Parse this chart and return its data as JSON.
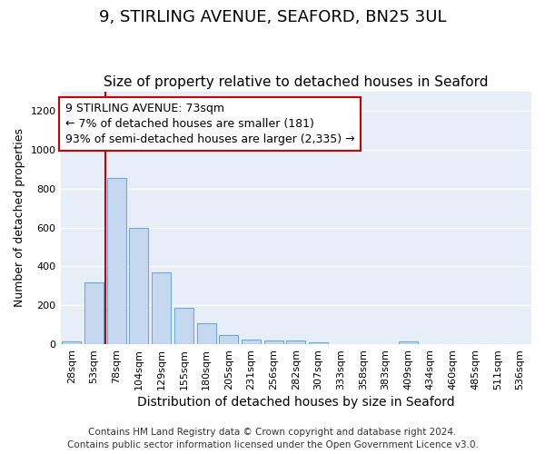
{
  "title": "9, STIRLING AVENUE, SEAFORD, BN25 3UL",
  "subtitle": "Size of property relative to detached houses in Seaford",
  "xlabel": "Distribution of detached houses by size in Seaford",
  "ylabel": "Number of detached properties",
  "bar_labels": [
    "28sqm",
    "53sqm",
    "78sqm",
    "104sqm",
    "129sqm",
    "155sqm",
    "180sqm",
    "205sqm",
    "231sqm",
    "256sqm",
    "282sqm",
    "307sqm",
    "333sqm",
    "358sqm",
    "383sqm",
    "409sqm",
    "434sqm",
    "460sqm",
    "485sqm",
    "511sqm",
    "536sqm"
  ],
  "bar_values": [
    15,
    320,
    855,
    598,
    370,
    185,
    107,
    47,
    22,
    18,
    18,
    10,
    0,
    0,
    0,
    12,
    0,
    0,
    0,
    0,
    0
  ],
  "bar_color": "#c5d8f0",
  "bar_edge_color": "#6aaad4",
  "ylim": [
    0,
    1300
  ],
  "yticks": [
    0,
    200,
    400,
    600,
    800,
    1000,
    1200
  ],
  "marker_label_line1": "9 STIRLING AVENUE: 73sqm",
  "marker_label_line2": "← 7% of detached houses are smaller (181)",
  "marker_label_line3": "93% of semi-detached houses are larger (2,335) →",
  "vline_color": "#cc0000",
  "annotation_box_color": "#cc0000",
  "footer_line1": "Contains HM Land Registry data © Crown copyright and database right 2024.",
  "footer_line2": "Contains public sector information licensed under the Open Government Licence v3.0.",
  "background_color": "#e8eef8",
  "grid_color": "#ffffff",
  "title_fontsize": 13,
  "subtitle_fontsize": 11,
  "xlabel_fontsize": 10,
  "ylabel_fontsize": 9,
  "tick_fontsize": 8,
  "footer_fontsize": 7.5,
  "ann_fontsize": 9
}
